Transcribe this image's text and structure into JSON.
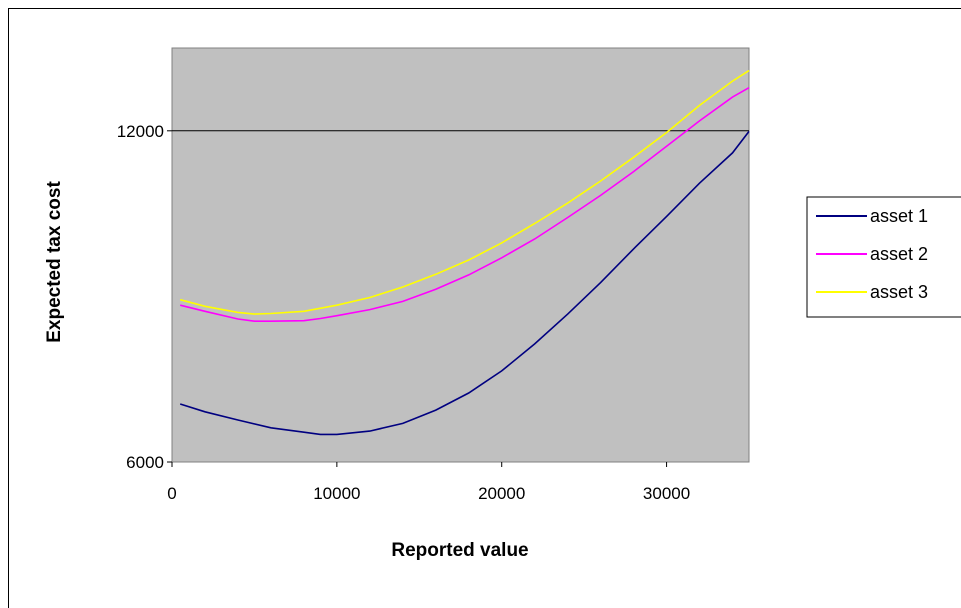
{
  "chart_data": {
    "type": "line",
    "title": "",
    "xlabel": "Reported value",
    "ylabel": "Expected tax cost",
    "xlim": [
      0,
      35000
    ],
    "ylim": [
      6000,
      13500
    ],
    "x_ticks": [
      0,
      10000,
      20000,
      30000
    ],
    "y_ticks": [
      6000,
      12000
    ],
    "x_tick_labels": [
      "0",
      "10000",
      "20000",
      "30000"
    ],
    "y_tick_labels": [
      "6000",
      "12000"
    ],
    "grid": "major y gridline at 12000",
    "legend_position": "right",
    "plot_background": "#c0c0c0",
    "series": [
      {
        "name": "asset 1",
        "color": "#000080",
        "x": [
          500,
          2000,
          4000,
          6000,
          8000,
          9000,
          10000,
          12000,
          14000,
          16000,
          18000,
          20000,
          22000,
          24000,
          26000,
          28000,
          30000,
          32000,
          34000,
          35000
        ],
        "y": [
          7050,
          6910,
          6760,
          6620,
          6540,
          6500,
          6500,
          6560,
          6700,
          6940,
          7250,
          7650,
          8140,
          8680,
          9250,
          9860,
          10450,
          11050,
          11600,
          11990
        ]
      },
      {
        "name": "asset 2",
        "color": "#ff00ff",
        "x": [
          500,
          2000,
          4000,
          5000,
          6000,
          8000,
          9000,
          10000,
          12000,
          14000,
          16000,
          18000,
          20000,
          22000,
          24000,
          26000,
          28000,
          30000,
          32000,
          34000,
          35000
        ],
        "y": [
          8840,
          8730,
          8590,
          8550,
          8550,
          8560,
          8600,
          8650,
          8760,
          8910,
          9130,
          9390,
          9700,
          10040,
          10430,
          10830,
          11260,
          11720,
          12180,
          12610,
          12780
        ]
      },
      {
        "name": "asset 3",
        "color": "#ffff00",
        "x": [
          500,
          2000,
          4000,
          5000,
          6000,
          8000,
          10000,
          12000,
          14000,
          16000,
          18000,
          20000,
          22000,
          24000,
          26000,
          28000,
          30000,
          32000,
          34000,
          35000
        ],
        "y": [
          8940,
          8820,
          8710,
          8680,
          8690,
          8730,
          8840,
          8980,
          9170,
          9400,
          9660,
          9970,
          10320,
          10690,
          11090,
          11520,
          11970,
          12460,
          12900,
          13090
        ]
      }
    ]
  }
}
